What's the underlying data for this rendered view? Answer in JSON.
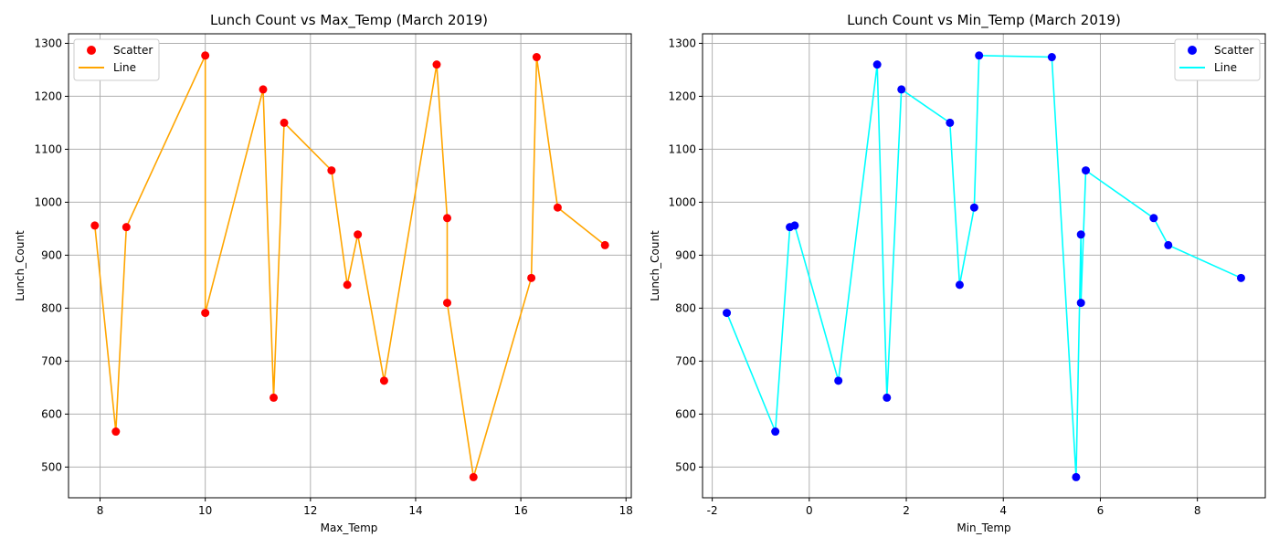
{
  "chart_data": [
    {
      "type": "scatter",
      "title": "Lunch Count vs Max_Temp (March 2019)",
      "xlabel": "Max_Temp",
      "ylabel": "Lunch_Count",
      "xlim": [
        7.4,
        18.1
      ],
      "ylim": [
        442,
        1318
      ],
      "xticks": [
        8,
        10,
        12,
        14,
        16,
        18
      ],
      "yticks": [
        500,
        600,
        700,
        800,
        900,
        1000,
        1100,
        1200,
        1300
      ],
      "grid": true,
      "legend_position": "top-left",
      "scatter_color": "#ff0000",
      "line_color": "#ffa500",
      "legend": [
        "Scatter",
        "Line"
      ],
      "x": [
        7.9,
        8.3,
        8.5,
        10.0,
        10.0,
        11.1,
        11.3,
        11.5,
        12.4,
        12.7,
        12.9,
        13.4,
        14.4,
        14.6,
        14.6,
        15.1,
        16.2,
        16.3,
        16.7,
        17.6
      ],
      "y": [
        956,
        567,
        953,
        1277,
        791,
        1213,
        631,
        1150,
        1060,
        844,
        939,
        663,
        1260,
        970,
        810,
        481,
        857,
        1274,
        990,
        919
      ]
    },
    {
      "type": "scatter",
      "title": "Lunch Count vs Min_Temp (March 2019)",
      "xlabel": "Min_Temp",
      "ylabel": "Lunch_Count",
      "xlim": [
        -2.2,
        9.4
      ],
      "ylim": [
        442,
        1318
      ],
      "xticks": [
        -2,
        0,
        2,
        4,
        6,
        8
      ],
      "yticks": [
        500,
        600,
        700,
        800,
        900,
        1000,
        1100,
        1200,
        1300
      ],
      "grid": true,
      "legend_position": "top-right",
      "scatter_color": "#0000ff",
      "line_color": "#00ffff",
      "legend": [
        "Scatter",
        "Line"
      ],
      "x": [
        -1.7,
        -0.7,
        -0.4,
        -0.3,
        0.6,
        1.4,
        1.6,
        1.9,
        2.9,
        3.1,
        3.4,
        3.5,
        5.0,
        5.5,
        5.6,
        5.6,
        5.7,
        7.1,
        7.4,
        8.9
      ],
      "y": [
        791,
        567,
        953,
        956,
        663,
        1260,
        631,
        1213,
        1150,
        844,
        990,
        1277,
        1274,
        481,
        939,
        810,
        1060,
        970,
        919,
        857
      ]
    }
  ]
}
